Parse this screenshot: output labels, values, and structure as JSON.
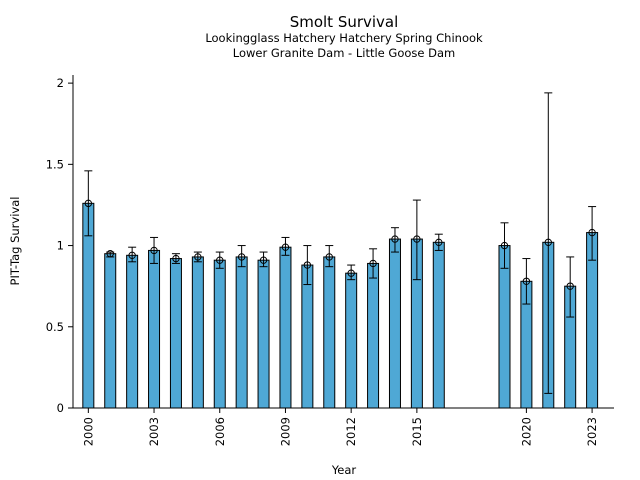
{
  "chart_data": {
    "type": "bar",
    "title": "Smolt Survival",
    "subtitle_lines": [
      "Lookingglass Hatchery Hatchery Spring Chinook",
      "Lower Granite Dam - Little Goose Dam"
    ],
    "xlabel": "Year",
    "ylabel": "PIT-Tag Survival",
    "ylim": [
      0,
      2.05
    ],
    "xlim": [
      1999.3,
      2024.0
    ],
    "yticks": [
      0,
      0.5,
      1,
      1.5,
      2
    ],
    "ytick_labels": [
      "0",
      "0.5",
      "1",
      "1.5",
      "2"
    ],
    "xticks": [
      2000,
      2003,
      2006,
      2009,
      2012,
      2015,
      2020,
      2023
    ],
    "xtick_labels": [
      "2000",
      "2003",
      "2006",
      "2009",
      "2012",
      "2015",
      "2020",
      "2023"
    ],
    "bar_color": "#4fa8d5",
    "grid": false,
    "points": [
      {
        "x": 2000,
        "y": 1.26,
        "lo": 1.06,
        "hi": 1.46
      },
      {
        "x": 2001,
        "y": 0.95,
        "lo": 0.93,
        "hi": 0.96
      },
      {
        "x": 2002,
        "y": 0.94,
        "lo": 0.9,
        "hi": 0.99
      },
      {
        "x": 2003,
        "y": 0.97,
        "lo": 0.89,
        "hi": 1.05
      },
      {
        "x": 2004,
        "y": 0.92,
        "lo": 0.89,
        "hi": 0.95
      },
      {
        "x": 2005,
        "y": 0.93,
        "lo": 0.9,
        "hi": 0.96
      },
      {
        "x": 2006,
        "y": 0.91,
        "lo": 0.86,
        "hi": 0.96
      },
      {
        "x": 2007,
        "y": 0.93,
        "lo": 0.87,
        "hi": 1.0
      },
      {
        "x": 2008,
        "y": 0.91,
        "lo": 0.87,
        "hi": 0.96
      },
      {
        "x": 2009,
        "y": 0.99,
        "lo": 0.94,
        "hi": 1.05
      },
      {
        "x": 2010,
        "y": 0.88,
        "lo": 0.76,
        "hi": 1.0
      },
      {
        "x": 2011,
        "y": 0.93,
        "lo": 0.87,
        "hi": 1.0
      },
      {
        "x": 2012,
        "y": 0.83,
        "lo": 0.79,
        "hi": 0.88
      },
      {
        "x": 2013,
        "y": 0.89,
        "lo": 0.8,
        "hi": 0.98
      },
      {
        "x": 2014,
        "y": 1.04,
        "lo": 0.96,
        "hi": 1.11
      },
      {
        "x": 2015,
        "y": 1.04,
        "lo": 0.79,
        "hi": 1.28
      },
      {
        "x": 2016,
        "y": 1.02,
        "lo": 0.97,
        "hi": 1.07
      },
      {
        "x": 2019,
        "y": 1.0,
        "lo": 0.86,
        "hi": 1.14
      },
      {
        "x": 2020,
        "y": 0.78,
        "lo": 0.64,
        "hi": 0.92
      },
      {
        "x": 2021,
        "y": 1.02,
        "lo": 0.09,
        "hi": 1.94
      },
      {
        "x": 2022,
        "y": 0.75,
        "lo": 0.56,
        "hi": 0.93
      },
      {
        "x": 2023,
        "y": 1.08,
        "lo": 0.91,
        "hi": 1.24
      }
    ]
  }
}
